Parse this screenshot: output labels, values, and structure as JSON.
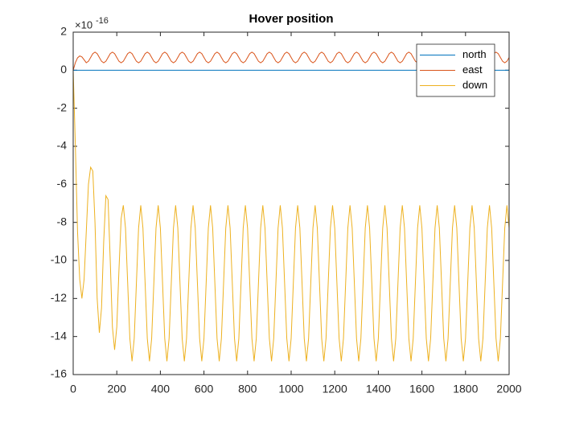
{
  "chart_data": {
    "type": "line",
    "title": "Hover position",
    "y_exponent": {
      "base": "×10",
      "power": "-16"
    },
    "xlim": [
      0,
      2000
    ],
    "xticks": [
      0,
      200,
      400,
      600,
      800,
      1000,
      1200,
      1400,
      1600,
      1800,
      2000
    ],
    "ylim": [
      -16,
      2
    ],
    "yticks": [
      -16,
      -14,
      -12,
      -10,
      -8,
      -6,
      -4,
      -2,
      0,
      2
    ],
    "grid": false,
    "legend": "northeast",
    "x": [
      0,
      10,
      20,
      30,
      40,
      50,
      60,
      70,
      80,
      90,
      100,
      110,
      120,
      130,
      140,
      150,
      160,
      170,
      180,
      190,
      200,
      210,
      220,
      230,
      240,
      250,
      260,
      270,
      280,
      290,
      300,
      310,
      320,
      330,
      340,
      350,
      360,
      370,
      380,
      390,
      400,
      410,
      420,
      430,
      440,
      450,
      460,
      470,
      480,
      490,
      500,
      510,
      520,
      530,
      540,
      550,
      560,
      570,
      580,
      590,
      600,
      610,
      620,
      630,
      640,
      650,
      660,
      670,
      680,
      690,
      700,
      710,
      720,
      730,
      740,
      750,
      760,
      770,
      780,
      790,
      800,
      810,
      820,
      830,
      840,
      850,
      860,
      870,
      880,
      890,
      900,
      910,
      920,
      930,
      940,
      950,
      960,
      970,
      980,
      990,
      1000,
      1010,
      1020,
      1030,
      1040,
      1050,
      1060,
      1070,
      1080,
      1090,
      1100,
      1110,
      1120,
      1130,
      1140,
      1150,
      1160,
      1170,
      1180,
      1190,
      1200,
      1210,
      1220,
      1230,
      1240,
      1250,
      1260,
      1270,
      1280,
      1290,
      1300,
      1310,
      1320,
      1330,
      1340,
      1350,
      1360,
      1370,
      1380,
      1390,
      1400,
      1410,
      1420,
      1430,
      1440,
      1450,
      1460,
      1470,
      1480,
      1490,
      1500,
      1510,
      1520,
      1530,
      1540,
      1550,
      1560,
      1570,
      1580,
      1590,
      1600,
      1610,
      1620,
      1630,
      1640,
      1650,
      1660,
      1670,
      1680,
      1690,
      1700,
      1710,
      1720,
      1730,
      1740,
      1750,
      1760,
      1770,
      1780,
      1790,
      1800,
      1810,
      1820,
      1830,
      1840,
      1850,
      1860,
      1870,
      1880,
      1890,
      1900,
      1910,
      1920,
      1930,
      1940,
      1950,
      1960,
      1970,
      1980,
      1990,
      2000
    ],
    "series": [
      {
        "name": "north",
        "color": "#0072bd",
        "values": [
          0,
          0,
          0,
          0,
          0,
          0,
          0,
          0,
          0,
          0,
          0,
          0,
          0,
          0,
          0,
          0,
          0,
          0,
          0,
          0,
          0,
          0,
          0,
          0,
          0,
          0,
          0,
          0,
          0,
          0,
          0,
          0,
          0,
          0,
          0,
          0,
          0,
          0,
          0,
          0,
          0,
          0,
          0,
          0,
          0,
          0,
          0,
          0,
          0,
          0,
          0,
          0,
          0,
          0,
          0,
          0,
          0,
          0,
          0,
          0,
          0,
          0,
          0,
          0,
          0,
          0,
          0,
          0,
          0,
          0,
          0,
          0,
          0,
          0,
          0,
          0,
          0,
          0,
          0,
          0,
          0,
          0,
          0,
          0,
          0,
          0,
          0,
          0,
          0,
          0,
          0,
          0,
          0,
          0,
          0,
          0,
          0,
          0,
          0,
          0,
          0,
          0,
          0,
          0,
          0,
          0,
          0,
          0,
          0,
          0,
          0,
          0,
          0,
          0,
          0,
          0,
          0,
          0,
          0,
          0,
          0,
          0,
          0,
          0,
          0,
          0,
          0,
          0,
          0,
          0,
          0,
          0,
          0,
          0,
          0,
          0,
          0,
          0,
          0,
          0,
          0,
          0,
          0,
          0,
          0,
          0,
          0,
          0,
          0,
          0,
          0,
          0,
          0,
          0,
          0,
          0,
          0,
          0,
          0,
          0,
          0,
          0,
          0,
          0,
          0,
          0,
          0,
          0,
          0,
          0,
          0,
          0,
          0,
          0,
          0,
          0,
          0,
          0,
          0,
          0,
          0,
          0,
          0,
          0,
          0,
          0,
          0,
          0,
          0,
          0,
          0,
          0,
          0,
          0,
          0,
          0,
          0,
          0,
          0,
          0,
          0
        ]
      },
      {
        "name": "east",
        "color": "#d95319",
        "values": [
          0,
          0.4,
          0.65,
          0.75,
          0.7,
          0.55,
          0.39,
          0.47,
          0.67,
          0.87,
          0.95,
          0.87,
          0.67,
          0.47,
          0.39,
          0.47,
          0.67,
          0.87,
          0.95,
          0.87,
          0.67,
          0.47,
          0.39,
          0.47,
          0.67,
          0.87,
          0.95,
          0.87,
          0.67,
          0.47,
          0.39,
          0.47,
          0.67,
          0.87,
          0.95,
          0.87,
          0.67,
          0.47,
          0.39,
          0.47,
          0.67,
          0.87,
          0.95,
          0.87,
          0.67,
          0.47,
          0.39,
          0.47,
          0.67,
          0.87,
          0.95,
          0.87,
          0.67,
          0.47,
          0.39,
          0.47,
          0.67,
          0.87,
          0.95,
          0.87,
          0.67,
          0.47,
          0.39,
          0.47,
          0.67,
          0.87,
          0.95,
          0.87,
          0.67,
          0.47,
          0.39,
          0.47,
          0.67,
          0.87,
          0.95,
          0.87,
          0.67,
          0.47,
          0.39,
          0.47,
          0.67,
          0.87,
          0.95,
          0.87,
          0.67,
          0.47,
          0.39,
          0.47,
          0.67,
          0.87,
          0.95,
          0.87,
          0.67,
          0.47,
          0.39,
          0.47,
          0.67,
          0.87,
          0.95,
          0.87,
          0.67,
          0.47,
          0.39,
          0.47,
          0.67,
          0.87,
          0.95,
          0.87,
          0.67,
          0.47,
          0.39,
          0.47,
          0.67,
          0.87,
          0.95,
          0.87,
          0.67,
          0.47,
          0.39,
          0.47,
          0.67,
          0.87,
          0.95,
          0.87,
          0.67,
          0.47,
          0.39,
          0.47,
          0.67,
          0.87,
          0.95,
          0.87,
          0.67,
          0.47,
          0.39,
          0.47,
          0.67,
          0.87,
          0.95,
          0.87,
          0.67,
          0.47,
          0.39,
          0.47,
          0.67,
          0.87,
          0.95,
          0.87,
          0.67,
          0.47,
          0.39,
          0.47,
          0.67,
          0.87,
          0.95,
          0.87,
          0.67,
          0.47,
          0.39,
          0.47,
          0.67,
          0.87,
          0.95,
          0.87,
          0.67,
          0.47,
          0.39,
          0.47,
          0.67,
          0.87,
          0.95,
          0.87,
          0.67,
          0.47,
          0.39,
          0.47,
          0.67,
          0.87,
          0.95,
          0.87,
          0.67,
          0.47,
          0.39,
          0.47,
          0.67,
          0.87,
          0.95,
          0.87,
          0.67,
          0.47,
          0.39,
          0.47,
          0.67,
          0.87,
          0.95,
          0.87,
          0.67,
          0.47,
          0.39,
          0.47,
          0.67
        ]
      },
      {
        "name": "down",
        "color": "#edb120",
        "values": [
          0,
          -4,
          -8.5,
          -11,
          -12,
          -11,
          -8.5,
          -6,
          -5.1,
          -5.3,
          -8,
          -12,
          -13.8,
          -12.5,
          -9,
          -6.6,
          -6.8,
          -10,
          -13.5,
          -14.7,
          -13.5,
          -10.5,
          -7.8,
          -7.1,
          -8.3,
          -11.2,
          -14.1,
          -15.3,
          -14.1,
          -11.2,
          -8.3,
          -7.1,
          -8.3,
          -11.2,
          -14.1,
          -15.3,
          -14.1,
          -11.2,
          -8.3,
          -7.1,
          -8.3,
          -11.2,
          -14.1,
          -15.3,
          -14.1,
          -11.2,
          -8.3,
          -7.1,
          -8.3,
          -11.2,
          -14.1,
          -15.3,
          -14.1,
          -11.2,
          -8.3,
          -7.1,
          -8.3,
          -11.2,
          -14.1,
          -15.3,
          -14.1,
          -11.2,
          -8.3,
          -7.1,
          -8.3,
          -11.2,
          -14.1,
          -15.3,
          -14.1,
          -11.2,
          -8.3,
          -7.1,
          -8.3,
          -11.2,
          -14.1,
          -15.3,
          -14.1,
          -11.2,
          -8.3,
          -7.1,
          -8.3,
          -11.2,
          -14.1,
          -15.3,
          -14.1,
          -11.2,
          -8.3,
          -7.1,
          -8.3,
          -11.2,
          -14.1,
          -15.3,
          -14.1,
          -11.2,
          -8.3,
          -7.1,
          -8.3,
          -11.2,
          -14.1,
          -15.3,
          -14.1,
          -11.2,
          -8.3,
          -7.1,
          -8.3,
          -11.2,
          -14.1,
          -15.3,
          -14.1,
          -11.2,
          -8.3,
          -7.1,
          -8.3,
          -11.2,
          -14.1,
          -15.3,
          -14.1,
          -11.2,
          -8.3,
          -7.1,
          -8.3,
          -11.2,
          -14.1,
          -15.3,
          -14.1,
          -11.2,
          -8.3,
          -7.1,
          -8.3,
          -11.2,
          -14.1,
          -15.3,
          -14.1,
          -11.2,
          -8.3,
          -7.1,
          -8.3,
          -11.2,
          -14.1,
          -15.3,
          -14.1,
          -11.2,
          -8.3,
          -7.1,
          -8.3,
          -11.2,
          -14.1,
          -15.3,
          -14.1,
          -11.2,
          -8.3,
          -7.1,
          -8.3,
          -11.2,
          -14.1,
          -15.3,
          -14.1,
          -11.2,
          -8.3,
          -7.1,
          -8.3,
          -11.2,
          -14.1,
          -15.3,
          -14.1,
          -11.2,
          -8.3,
          -7.1,
          -8.3,
          -11.2,
          -14.1,
          -15.3,
          -14.1,
          -11.2,
          -8.3,
          -7.1,
          -8.3,
          -11.2,
          -14.1,
          -15.3,
          -14.1,
          -11.2,
          -8.3,
          -7.1,
          -8.3,
          -11.2,
          -14.1,
          -15.3,
          -14.1,
          -11.2,
          -8.3,
          -7.1,
          -8.3,
          -11.2,
          -14.1,
          -15.3,
          -14.1,
          -11.2,
          -8.3,
          -7.1,
          -8.3
        ]
      }
    ]
  }
}
